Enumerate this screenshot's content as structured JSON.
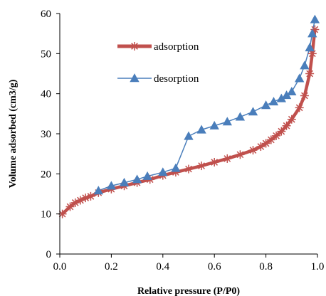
{
  "chart_data": {
    "type": "line",
    "xlabel": "Relative pressure (P/P0)",
    "ylabel": "Volume adsorbed (cm3/g)",
    "xlim": [
      0.0,
      1.0
    ],
    "ylim": [
      0,
      60
    ],
    "x_ticks": [
      0.0,
      0.2,
      0.4,
      0.6,
      0.8,
      1.0
    ],
    "x_tick_labels": [
      "0.0",
      "0.2",
      "0.4",
      "0.6",
      "0.8",
      "1.0"
    ],
    "y_ticks": [
      0,
      10,
      20,
      30,
      40,
      50,
      60
    ],
    "y_tick_labels": [
      "0",
      "10",
      "20",
      "30",
      "40",
      "50",
      "60"
    ],
    "grid": false,
    "legend_position": "top-center",
    "series": [
      {
        "name": "adsorption",
        "color": "#c0504d",
        "marker": "asterisk",
        "x": [
          0.01,
          0.04,
          0.06,
          0.08,
          0.1,
          0.12,
          0.15,
          0.2,
          0.25,
          0.3,
          0.35,
          0.4,
          0.45,
          0.5,
          0.55,
          0.6,
          0.65,
          0.7,
          0.75,
          0.78,
          0.8,
          0.82,
          0.84,
          0.86,
          0.88,
          0.9,
          0.93,
          0.95,
          0.97,
          0.98,
          0.99
        ],
        "y": [
          10.0,
          11.8,
          12.8,
          13.4,
          14.0,
          14.4,
          15.3,
          16.2,
          17.0,
          17.8,
          18.6,
          19.6,
          20.4,
          21.2,
          22.0,
          22.9,
          23.8,
          24.8,
          25.9,
          26.8,
          27.6,
          28.5,
          29.5,
          30.6,
          32.0,
          33.6,
          36.5,
          39.5,
          45.0,
          50.0,
          56.0
        ]
      },
      {
        "name": "desorption",
        "color": "#4a7ebb",
        "marker": "triangle",
        "x": [
          0.15,
          0.2,
          0.25,
          0.3,
          0.34,
          0.4,
          0.45,
          0.5,
          0.55,
          0.6,
          0.65,
          0.7,
          0.75,
          0.8,
          0.83,
          0.86,
          0.88,
          0.9,
          0.93,
          0.95,
          0.97,
          0.98,
          0.99
        ],
        "y": [
          15.8,
          17.0,
          17.8,
          18.6,
          19.4,
          20.4,
          21.4,
          29.4,
          31.0,
          32.0,
          33.0,
          34.2,
          35.5,
          37.1,
          38.0,
          38.8,
          39.6,
          40.5,
          43.8,
          47.0,
          51.5,
          55.0,
          58.5
        ]
      }
    ]
  }
}
